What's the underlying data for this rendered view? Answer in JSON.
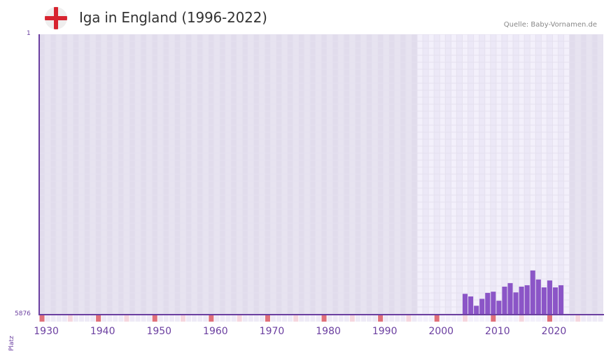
{
  "header": {
    "title": "Iga in England (1996-2022)",
    "flag_icon": "england-flag-icon",
    "source": "Quelle: Baby-Vornamen.de"
  },
  "colors": {
    "bar": "#8b55c7",
    "axis": "#6b3fa0",
    "highlight_band": "#f1eefa",
    "grid_bg": "#e5e1ef",
    "decade_marker": "#e0707a",
    "half_decade_marker": "#f5d6de"
  },
  "chart_data": {
    "type": "bar",
    "title": "Iga in England (1996-2022)",
    "xlabel": "",
    "ylabel": "Platz",
    "y_inverted": true,
    "ylim": [
      1,
      5876
    ],
    "y_tick_labels": [
      "1",
      "5876"
    ],
    "x_range": [
      1929,
      2028
    ],
    "x_tick_labels": [
      "1930",
      "1940",
      "1950",
      "1960",
      "1970",
      "1980",
      "1990",
      "2000",
      "2010",
      "2020"
    ],
    "highlight_range": [
      1996,
      2022
    ],
    "grid": true,
    "categories": [
      "2004",
      "2005",
      "2006",
      "2007",
      "2008",
      "2009",
      "2010",
      "2011",
      "2012",
      "2013",
      "2014",
      "2015",
      "2016",
      "2017",
      "2018",
      "2019",
      "2020",
      "2021"
    ],
    "values": [
      5440,
      5495,
      5690,
      5545,
      5420,
      5395,
      5585,
      5290,
      5215,
      5410,
      5290,
      5260,
      4950,
      5140,
      5305,
      5160,
      5305,
      5260
    ]
  }
}
